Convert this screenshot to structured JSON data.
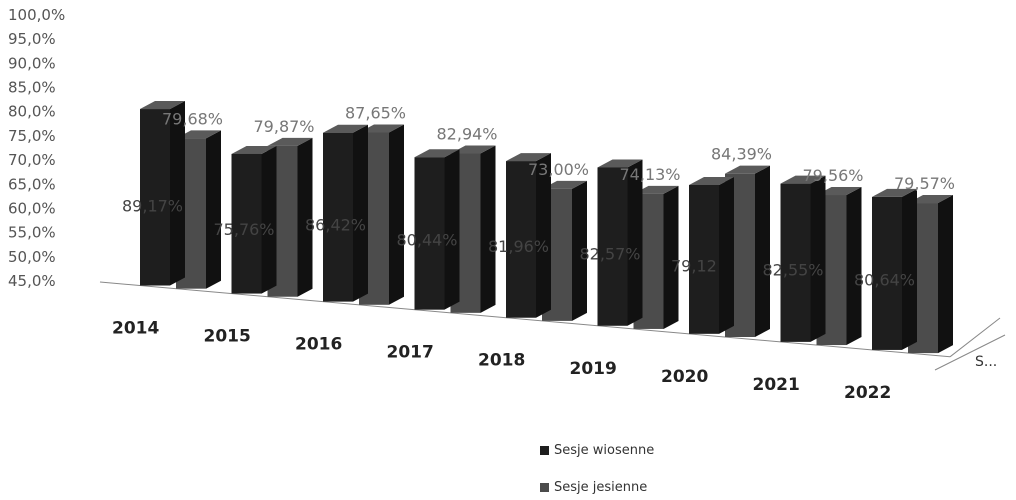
{
  "chart_data": {
    "type": "bar",
    "subtype": "3d-clustered",
    "title": "",
    "categories": [
      "2014",
      "2015",
      "2016",
      "2017",
      "2018",
      "2019",
      "2020",
      "2021",
      "2022"
    ],
    "series": [
      {
        "name": "Sesje wiosenne",
        "color": "#1e1e1e",
        "values": [
          89.17,
          75.76,
          86.42,
          80.44,
          81.96,
          82.57,
          79.12,
          82.55,
          80.64
        ],
        "labels": [
          "89,17%",
          "75,76%",
          "86,42%",
          "80,44%",
          "81,96%",
          "82,57%",
          "79,12",
          "82,55%",
          "80,64%"
        ]
      },
      {
        "name": "Sesje jesienne",
        "color": "#4c4c4c",
        "values": [
          79.68,
          79.87,
          87.65,
          82.94,
          73.0,
          74.13,
          84.39,
          79.56,
          79.57
        ],
        "labels": [
          "79,68%",
          "79,87%",
          "87,65%",
          "82,94%",
          "73,00%",
          "74,13%",
          "84,39%",
          "79,56%",
          "79,57%"
        ]
      }
    ],
    "ylim": [
      45,
      100
    ],
    "yticks": [
      "45,0%",
      "50,0%",
      "55,0%",
      "60,0%",
      "65,0%",
      "70,0%",
      "75,0%",
      "80,0%",
      "85,0%",
      "90,0%",
      "95,0%",
      "100,0%"
    ],
    "depth_axis_label": "S...",
    "grid": false,
    "legend_position": "bottom"
  }
}
